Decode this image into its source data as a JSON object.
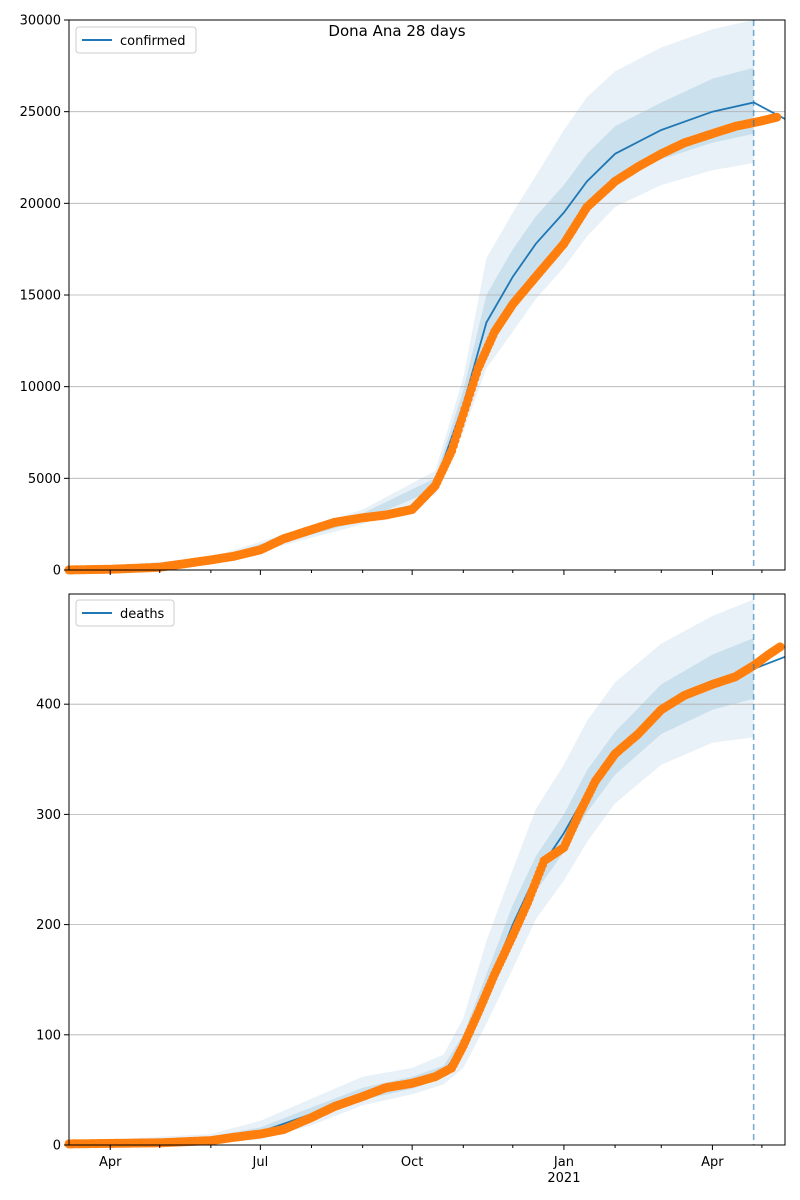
{
  "title": "Dona Ana 28 days",
  "colors": {
    "model": "#1f77b4",
    "observed": "#ff7f0e",
    "band": "#1f77b4",
    "grid": "#b0b0b0"
  },
  "chart_data": [
    {
      "type": "line",
      "legend": "confirmed",
      "legend_position": "upper-left",
      "grid": "horizontal",
      "ylim": [
        0,
        30000
      ],
      "yticks": [
        0,
        5000,
        10000,
        15000,
        20000,
        25000,
        30000
      ],
      "xlim": [
        "2020-03-07",
        "2021-05-15"
      ],
      "forecast_line": "2021-04-26",
      "model_median": [
        [
          "2020-03-07",
          10
        ],
        [
          "2020-05-01",
          90
        ],
        [
          "2020-06-01",
          500
        ],
        [
          "2020-07-01",
          1000
        ],
        [
          "2020-08-01",
          2200
        ],
        [
          "2020-09-01",
          2900
        ],
        [
          "2020-10-01",
          3500
        ],
        [
          "2020-10-15",
          4700
        ],
        [
          "2020-11-01",
          9000
        ],
        [
          "2020-11-15",
          13500
        ],
        [
          "2020-12-01",
          16000
        ],
        [
          "2020-12-15",
          17800
        ],
        [
          "2021-01-01",
          19500
        ],
        [
          "2021-01-15",
          21200
        ],
        [
          "2021-02-01",
          22700
        ],
        [
          "2021-03-01",
          24000
        ],
        [
          "2021-04-01",
          25000
        ],
        [
          "2021-04-26",
          25500
        ],
        [
          "2021-05-15",
          24600
        ]
      ],
      "band_outer": [
        [
          "2020-03-07",
          0,
          30
        ],
        [
          "2020-06-01",
          300,
          700
        ],
        [
          "2020-09-01",
          2500,
          3300
        ],
        [
          "2020-10-15",
          4100,
          5400
        ],
        [
          "2020-11-01",
          7500,
          10500
        ],
        [
          "2020-11-15",
          11000,
          17000
        ],
        [
          "2020-12-01",
          13000,
          19500
        ],
        [
          "2020-12-15",
          14800,
          21500
        ],
        [
          "2021-01-01",
          16500,
          24000
        ],
        [
          "2021-01-15",
          18200,
          25800
        ],
        [
          "2021-02-01",
          19800,
          27200
        ],
        [
          "2021-03-01",
          21000,
          28500
        ],
        [
          "2021-04-01",
          21800,
          29500
        ],
        [
          "2021-04-26",
          22200,
          30000
        ]
      ],
      "band_inner": [
        [
          "2020-03-07",
          5,
          20
        ],
        [
          "2020-06-01",
          400,
          600
        ],
        [
          "2020-09-01",
          2700,
          3100
        ],
        [
          "2020-10-15",
          4400,
          5000
        ],
        [
          "2020-11-01",
          8200,
          9800
        ],
        [
          "2020-11-15",
          12200,
          15000
        ],
        [
          "2020-12-01",
          14500,
          17500
        ],
        [
          "2020-12-15",
          16300,
          19300
        ],
        [
          "2021-01-01",
          18000,
          21000
        ],
        [
          "2021-01-15",
          19800,
          22700
        ],
        [
          "2021-02-01",
          21200,
          24200
        ],
        [
          "2021-03-01",
          22400,
          25500
        ],
        [
          "2021-04-01",
          23300,
          26800
        ],
        [
          "2021-04-26",
          23800,
          27400
        ]
      ],
      "observed": [
        [
          "2020-03-07",
          5
        ],
        [
          "2020-04-01",
          40
        ],
        [
          "2020-05-01",
          150
        ],
        [
          "2020-06-01",
          550
        ],
        [
          "2020-06-15",
          750
        ],
        [
          "2020-07-01",
          1100
        ],
        [
          "2020-07-15",
          1700
        ],
        [
          "2020-08-01",
          2200
        ],
        [
          "2020-08-15",
          2600
        ],
        [
          "2020-09-01",
          2850
        ],
        [
          "2020-09-15",
          3000
        ],
        [
          "2020-10-01",
          3300
        ],
        [
          "2020-10-15",
          4600
        ],
        [
          "2020-10-25",
          6500
        ],
        [
          "2020-11-01",
          8500
        ],
        [
          "2020-11-10",
          11000
        ],
        [
          "2020-11-20",
          13000
        ],
        [
          "2020-12-01",
          14500
        ],
        [
          "2020-12-15",
          16000
        ],
        [
          "2021-01-01",
          17800
        ],
        [
          "2021-01-15",
          19800
        ],
        [
          "2021-02-01",
          21200
        ],
        [
          "2021-02-15",
          22000
        ],
        [
          "2021-03-01",
          22700
        ],
        [
          "2021-03-15",
          23300
        ],
        [
          "2021-04-01",
          23800
        ],
        [
          "2021-04-15",
          24200
        ],
        [
          "2021-05-01",
          24500
        ],
        [
          "2021-05-10",
          24700
        ]
      ]
    },
    {
      "type": "line",
      "legend": "deaths",
      "legend_position": "upper-left",
      "grid": "horizontal",
      "ylim": [
        0,
        500
      ],
      "yticks": [
        0,
        100,
        200,
        300,
        400
      ],
      "xlim": [
        "2020-03-07",
        "2021-05-15"
      ],
      "xticks": [
        "Apr",
        "Jul",
        "Oct",
        "Jan",
        "Apr"
      ],
      "xtick_dates": [
        "2020-04-01",
        "2020-07-01",
        "2020-10-01",
        "2021-01-01",
        "2021-04-01"
      ],
      "year_label": "2021",
      "forecast_line": "2021-04-26",
      "model_median": [
        [
          "2020-03-07",
          1
        ],
        [
          "2020-06-01",
          5
        ],
        [
          "2020-07-01",
          12
        ],
        [
          "2020-08-01",
          28
        ],
        [
          "2020-09-01",
          46
        ],
        [
          "2020-10-01",
          56
        ],
        [
          "2020-10-20",
          66
        ],
        [
          "2020-11-01",
          90
        ],
        [
          "2020-11-15",
          140
        ],
        [
          "2020-12-01",
          200
        ],
        [
          "2020-12-15",
          245
        ],
        [
          "2021-01-01",
          283
        ],
        [
          "2021-01-15",
          320
        ],
        [
          "2021-02-01",
          355
        ],
        [
          "2021-03-01",
          395
        ],
        [
          "2021-04-01",
          420
        ],
        [
          "2021-04-26",
          432
        ],
        [
          "2021-05-15",
          443
        ]
      ],
      "band_outer": [
        [
          "2020-03-07",
          0,
          3
        ],
        [
          "2020-06-01",
          1,
          10
        ],
        [
          "2020-07-01",
          5,
          22
        ],
        [
          "2020-08-01",
          18,
          42
        ],
        [
          "2020-09-01",
          36,
          62
        ],
        [
          "2020-10-01",
          46,
          70
        ],
        [
          "2020-10-20",
          55,
          82
        ],
        [
          "2020-11-01",
          70,
          115
        ],
        [
          "2020-11-15",
          110,
          185
        ],
        [
          "2020-12-01",
          160,
          250
        ],
        [
          "2020-12-15",
          205,
          305
        ],
        [
          "2021-01-01",
          240,
          345
        ],
        [
          "2021-01-15",
          275,
          385
        ],
        [
          "2021-02-01",
          310,
          420
        ],
        [
          "2021-03-01",
          345,
          455
        ],
        [
          "2021-04-01",
          365,
          480
        ],
        [
          "2021-04-26",
          370,
          495
        ]
      ],
      "band_inner": [
        [
          "2020-03-07",
          0,
          2
        ],
        [
          "2020-06-01",
          3,
          8
        ],
        [
          "2020-07-01",
          8,
          16
        ],
        [
          "2020-08-01",
          23,
          34
        ],
        [
          "2020-09-01",
          41,
          52
        ],
        [
          "2020-10-01",
          51,
          62
        ],
        [
          "2020-10-20",
          61,
          72
        ],
        [
          "2020-11-01",
          82,
          100
        ],
        [
          "2020-11-15",
          127,
          155
        ],
        [
          "2020-12-01",
          185,
          218
        ],
        [
          "2020-12-15",
          230,
          262
        ],
        [
          "2021-01-01",
          266,
          300
        ],
        [
          "2021-01-15",
          302,
          340
        ],
        [
          "2021-02-01",
          336,
          375
        ],
        [
          "2021-03-01",
          373,
          418
        ],
        [
          "2021-04-01",
          395,
          445
        ],
        [
          "2021-04-26",
          405,
          460
        ]
      ],
      "observed": [
        [
          "2020-03-07",
          1
        ],
        [
          "2020-05-01",
          2
        ],
        [
          "2020-06-01",
          4
        ],
        [
          "2020-06-15",
          7
        ],
        [
          "2020-07-01",
          10
        ],
        [
          "2020-07-15",
          14
        ],
        [
          "2020-08-01",
          25
        ],
        [
          "2020-08-15",
          35
        ],
        [
          "2020-09-01",
          44
        ],
        [
          "2020-09-15",
          52
        ],
        [
          "2020-10-01",
          56
        ],
        [
          "2020-10-15",
          62
        ],
        [
          "2020-10-25",
          70
        ],
        [
          "2020-11-01",
          90
        ],
        [
          "2020-11-10",
          120
        ],
        [
          "2020-11-20",
          155
        ],
        [
          "2020-12-01",
          190
        ],
        [
          "2020-12-10",
          220
        ],
        [
          "2020-12-20",
          258
        ],
        [
          "2021-01-01",
          270
        ],
        [
          "2021-01-10",
          300
        ],
        [
          "2021-01-20",
          330
        ],
        [
          "2021-02-01",
          355
        ],
        [
          "2021-02-15",
          373
        ],
        [
          "2021-03-01",
          395
        ],
        [
          "2021-03-15",
          408
        ],
        [
          "2021-04-01",
          418
        ],
        [
          "2021-04-15",
          425
        ],
        [
          "2021-04-26",
          435
        ],
        [
          "2021-05-05",
          445
        ],
        [
          "2021-05-12",
          452
        ]
      ]
    }
  ]
}
